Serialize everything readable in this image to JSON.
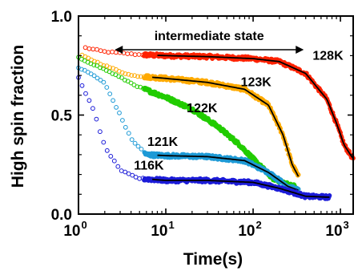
{
  "chart_data": {
    "type": "scatter",
    "xlabel": "Time(s)",
    "ylabel": "High spin fraction",
    "xscale": "log",
    "xlim": [
      1,
      1400
    ],
    "ylim": [
      0,
      1.0
    ],
    "x_ticks": [
      {
        "value": 1,
        "base": "10",
        "exp": "0"
      },
      {
        "value": 10,
        "base": "10",
        "exp": "1"
      },
      {
        "value": 100,
        "base": "10",
        "exp": "2"
      },
      {
        "value": 1000,
        "base": "10",
        "exp": "3"
      }
    ],
    "y_ticks": [
      {
        "value": 0,
        "label": "0.0"
      },
      {
        "value": 0.5,
        "label": "0.5"
      },
      {
        "value": 1.0,
        "label": "1.0"
      }
    ],
    "annotation": {
      "text": "intermediate state",
      "x_from": 2.6,
      "x_to": 380,
      "y": 0.83
    },
    "series": [
      {
        "name": "128K",
        "color": "#ff2200",
        "fit": true,
        "fit_from": 8,
        "points": [
          [
            1.2,
            0.84
          ],
          [
            2,
            0.82
          ],
          [
            5,
            0.805
          ],
          [
            10,
            0.8
          ],
          [
            30,
            0.795
          ],
          [
            100,
            0.785
          ],
          [
            200,
            0.77
          ],
          [
            400,
            0.71
          ],
          [
            700,
            0.58
          ],
          [
            900,
            0.46
          ],
          [
            1100,
            0.35
          ],
          [
            1300,
            0.3
          ],
          [
            1400,
            0.28
          ]
        ]
      },
      {
        "name": "123K",
        "color": "#ffaa00",
        "fit": true,
        "fit_from": 7,
        "points": [
          [
            1.1,
            0.8
          ],
          [
            2,
            0.75
          ],
          [
            4,
            0.7
          ],
          [
            10,
            0.685
          ],
          [
            30,
            0.665
          ],
          [
            80,
            0.63
          ],
          [
            150,
            0.55
          ],
          [
            220,
            0.4
          ],
          [
            280,
            0.25
          ],
          [
            330,
            0.19
          ]
        ]
      },
      {
        "name": "122K",
        "color": "#22cc00",
        "fit": false,
        "points": [
          [
            1,
            0.79
          ],
          [
            2,
            0.73
          ],
          [
            5,
            0.64
          ],
          [
            10,
            0.59
          ],
          [
            20,
            0.53
          ],
          [
            40,
            0.44
          ],
          [
            70,
            0.35
          ],
          [
            110,
            0.26
          ],
          [
            170,
            0.18
          ],
          [
            250,
            0.15
          ],
          [
            300,
            0.14
          ]
        ]
      },
      {
        "name": "121K",
        "color": "#1e9ad6",
        "fit": true,
        "fit_from": 8,
        "points": [
          [
            1,
            0.74
          ],
          [
            1.5,
            0.7
          ],
          [
            2,
            0.66
          ],
          [
            3,
            0.5
          ],
          [
            4,
            0.38
          ],
          [
            6,
            0.3
          ],
          [
            10,
            0.295
          ],
          [
            30,
            0.29
          ],
          [
            80,
            0.27
          ],
          [
            150,
            0.21
          ],
          [
            250,
            0.14
          ],
          [
            330,
            0.12
          ]
        ]
      },
      {
        "name": "116K",
        "color": "#1c1cd8",
        "fit": true,
        "fit_from": 7,
        "points": [
          [
            1,
            0.69
          ],
          [
            1.5,
            0.52
          ],
          [
            2,
            0.34
          ],
          [
            3,
            0.22
          ],
          [
            5,
            0.18
          ],
          [
            10,
            0.17
          ],
          [
            30,
            0.17
          ],
          [
            100,
            0.16
          ],
          [
            200,
            0.13
          ],
          [
            400,
            0.09
          ],
          [
            750,
            0.085
          ]
        ]
      }
    ],
    "series_labels": [
      {
        "text": "128K",
        "x": 720,
        "y": 0.78
      },
      {
        "text": "123K",
        "x": 108,
        "y": 0.645
      },
      {
        "text": "122K",
        "x": 26,
        "y": 0.515
      },
      {
        "text": "121K",
        "x": 9.2,
        "y": 0.345
      },
      {
        "text": "116K",
        "x": 6.4,
        "y": 0.225
      }
    ]
  }
}
